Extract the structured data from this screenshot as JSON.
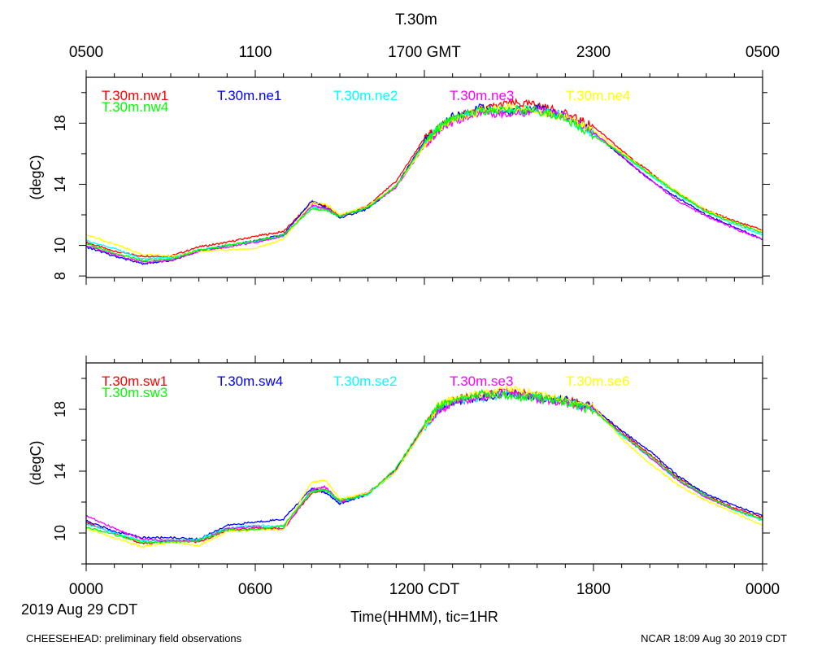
{
  "title": "T.30m",
  "top_axis_ticks": [
    "0500",
    "1100",
    "1700 GMT",
    "2300",
    "0500"
  ],
  "bottom_axis_ticks": [
    "0000",
    "0600",
    "1200 CDT",
    "1800",
    "0000"
  ],
  "date_label": "2019 Aug 29 CDT",
  "xlabel": "Time(HHMM), tic=1HR",
  "footer_left": "CHEESEHEAD: preliminary field observations",
  "footer_right": "NCAR 18:09 Aug 30 2019 CDT",
  "chart_data": [
    {
      "type": "line",
      "name": "top-panel",
      "ylabel": "(degC)",
      "xlabel": "Time(HHMM), tic=1HR",
      "x_unit": "hours since 2019 Aug 29 0000 CDT",
      "xlim": [
        0,
        24
      ],
      "ylim": [
        7.9,
        21
      ],
      "yticks": [
        8,
        10,
        14,
        18
      ],
      "x": [
        0,
        1,
        2,
        3,
        4,
        5,
        6,
        7,
        8,
        8.5,
        9,
        10,
        11,
        12,
        12.5,
        13,
        14,
        15,
        16,
        17,
        18,
        19,
        20,
        21,
        22,
        23,
        24
      ],
      "series": [
        {
          "name": "T.30m.nw1",
          "color": "#ff0000",
          "values": [
            10.2,
            9.6,
            9.3,
            9.3,
            9.9,
            10.2,
            10.6,
            10.9,
            12.8,
            12.6,
            11.9,
            12.6,
            14.2,
            17.0,
            17.7,
            18.3,
            18.9,
            19.3,
            19.2,
            18.6,
            17.8,
            16.2,
            14.8,
            13.4,
            12.3,
            11.6,
            11.0
          ]
        },
        {
          "name": "T.30m.ne1",
          "color": "#0000ff",
          "values": [
            9.9,
            9.3,
            8.8,
            9.0,
            9.6,
            10.0,
            10.3,
            10.7,
            12.9,
            12.5,
            11.8,
            12.4,
            13.9,
            16.8,
            17.6,
            18.4,
            19.0,
            18.7,
            19.0,
            18.5,
            17.4,
            15.8,
            14.3,
            13.1,
            12.0,
            11.2,
            10.4
          ]
        },
        {
          "name": "T.30m.ne2",
          "color": "#00ffff",
          "values": [
            10.3,
            9.8,
            9.1,
            9.2,
            9.7,
            10.0,
            10.2,
            10.6,
            12.5,
            12.4,
            11.9,
            12.5,
            13.8,
            16.6,
            17.7,
            18.2,
            18.8,
            18.9,
            18.9,
            18.4,
            17.3,
            16.0,
            14.6,
            13.3,
            12.2,
            11.4,
            10.7
          ]
        },
        {
          "name": "T.30m.ne3",
          "color": "#ff00ff",
          "values": [
            10.0,
            9.4,
            8.9,
            9.0,
            9.6,
            9.9,
            10.2,
            10.6,
            12.6,
            12.4,
            11.9,
            12.5,
            13.8,
            16.5,
            17.5,
            18.1,
            18.7,
            18.6,
            18.8,
            18.5,
            17.4,
            15.9,
            14.3,
            12.9,
            11.9,
            11.1,
            10.4
          ]
        },
        {
          "name": "T.30m.ne4",
          "color": "#ffff00",
          "values": [
            10.7,
            10.1,
            9.4,
            9.3,
            9.6,
            9.7,
            9.8,
            10.4,
            12.8,
            12.7,
            12.0,
            12.6,
            13.9,
            16.5,
            17.6,
            18.2,
            18.8,
            19.1,
            18.7,
            18.4,
            17.5,
            16.1,
            14.7,
            13.5,
            12.3,
            11.5,
            10.9
          ]
        },
        {
          "name": "T.30m.nw4",
          "color": "#00ff00",
          "values": [
            10.1,
            9.5,
            9.0,
            9.1,
            9.7,
            10.0,
            10.3,
            10.7,
            12.4,
            12.3,
            11.9,
            12.5,
            13.9,
            16.7,
            17.7,
            18.3,
            18.8,
            18.9,
            18.8,
            18.3,
            17.2,
            16.0,
            14.7,
            13.4,
            12.2,
            11.5,
            10.8
          ]
        }
      ]
    },
    {
      "type": "line",
      "name": "bottom-panel",
      "ylabel": "(degC)",
      "xlabel": "Time(HHMM), tic=1HR",
      "x_unit": "hours since 2019 Aug 29 0000 CDT",
      "xlim": [
        0,
        24
      ],
      "ylim": [
        8,
        21
      ],
      "yticks": [
        10,
        14,
        18
      ],
      "x": [
        0,
        1,
        2,
        3,
        4,
        5,
        6,
        7,
        8,
        8.5,
        9,
        10,
        11,
        12,
        12.5,
        13,
        14,
        15,
        16,
        17,
        18,
        19,
        20,
        21,
        22,
        23,
        24
      ],
      "series": [
        {
          "name": "T.30m.sw1",
          "color": "#ff0000",
          "values": [
            10.7,
            10.0,
            9.3,
            9.5,
            9.4,
            10.2,
            10.3,
            10.3,
            12.6,
            12.8,
            12.0,
            12.6,
            14.1,
            16.9,
            18.0,
            18.6,
            18.9,
            19.1,
            18.9,
            18.6,
            18.1,
            16.5,
            15.1,
            13.6,
            12.4,
            11.6,
            11.0
          ]
        },
        {
          "name": "T.30m.sw4",
          "color": "#0000ff",
          "values": [
            10.8,
            10.1,
            9.7,
            9.7,
            9.6,
            10.5,
            10.7,
            10.9,
            12.9,
            12.6,
            11.9,
            12.5,
            14.1,
            16.9,
            18.0,
            18.5,
            18.7,
            19.1,
            18.8,
            18.6,
            18.1,
            16.6,
            15.3,
            13.7,
            12.5,
            11.8,
            11.1
          ]
        },
        {
          "name": "T.30m.se2",
          "color": "#00ffff",
          "values": [
            10.6,
            10.0,
            9.5,
            9.5,
            9.6,
            10.3,
            10.5,
            10.4,
            12.7,
            12.8,
            12.0,
            12.5,
            14.0,
            16.8,
            18.0,
            18.5,
            18.7,
            19.0,
            18.8,
            18.5,
            18.0,
            16.3,
            14.9,
            13.4,
            12.3,
            11.5,
            10.8
          ]
        },
        {
          "name": "T.30m.se3",
          "color": "#ff00ff",
          "values": [
            11.1,
            10.3,
            9.6,
            9.5,
            9.5,
            10.3,
            10.4,
            10.2,
            12.8,
            13.0,
            12.0,
            12.6,
            14.0,
            16.9,
            17.9,
            18.4,
            18.8,
            19.2,
            18.7,
            18.4,
            18.0,
            16.4,
            14.9,
            13.4,
            12.3,
            11.5,
            10.9
          ]
        },
        {
          "name": "T.30m.se6",
          "color": "#ffff00",
          "values": [
            10.3,
            9.7,
            9.1,
            9.4,
            9.2,
            10.1,
            10.2,
            10.2,
            13.3,
            13.4,
            12.2,
            12.6,
            14.0,
            16.8,
            18.3,
            18.6,
            19.0,
            19.3,
            19.0,
            18.6,
            18.2,
            16.1,
            14.5,
            13.1,
            12.1,
            11.3,
            10.5
          ]
        },
        {
          "name": "T.30m.sw3",
          "color": "#00ff00",
          "values": [
            10.4,
            9.9,
            9.4,
            9.4,
            9.5,
            10.2,
            10.2,
            10.5,
            12.7,
            12.8,
            12.1,
            12.5,
            14.2,
            17.0,
            18.2,
            18.6,
            19.0,
            18.9,
            18.7,
            18.5,
            17.9,
            16.4,
            15.0,
            13.5,
            12.4,
            11.5,
            10.9
          ]
        }
      ]
    }
  ]
}
